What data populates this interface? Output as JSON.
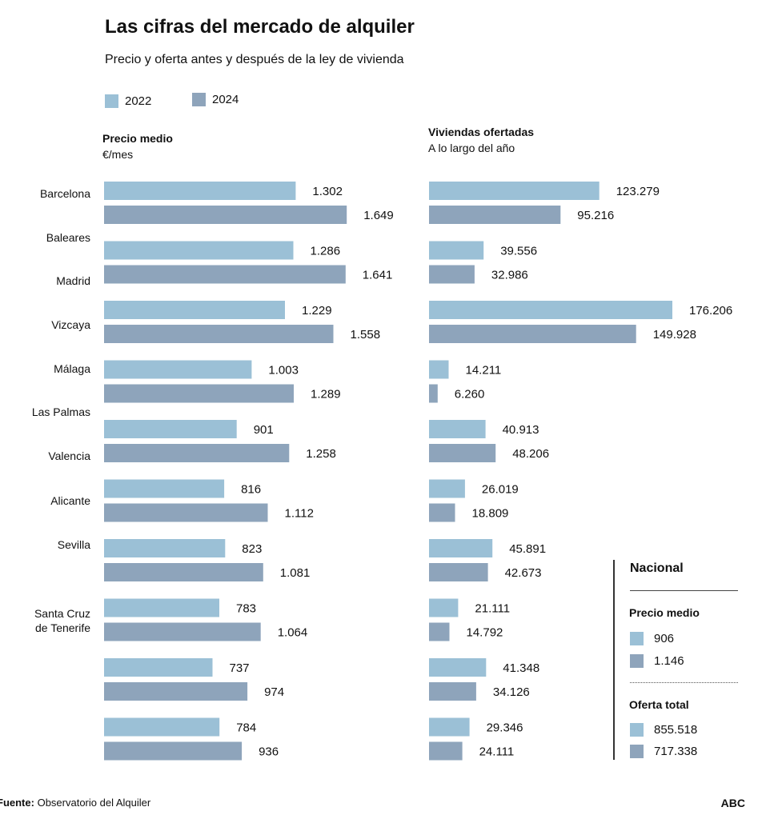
{
  "title": "Las cifras del mercado de alquiler",
  "subtitle": "Precio y oferta antes y después de la ley de vivienda",
  "colors": {
    "y2022": "#9bc0d6",
    "y2024": "#8ea4bb",
    "text": "#111111"
  },
  "legend": {
    "a": "2022",
    "b": "2024"
  },
  "left_panel": {
    "title": "Precio medio",
    "subtitle": "€/mes"
  },
  "right_panel": {
    "title": "Viviendas ofertadas",
    "subtitle": "A lo largo del año"
  },
  "region_labels": [
    "Barcelona",
    "Baleares",
    "Madrid",
    "Vizcaya",
    "Málaga",
    "Las Palmas",
    "Valencia",
    "Alicante",
    "Sevilla",
    "Santa Cruz",
    "de Tenerife"
  ],
  "chart_data": [
    {
      "type": "bar",
      "orientation": "horizontal",
      "title": "Precio medio",
      "unit": "€/mes",
      "series": [
        {
          "name": "2022",
          "values": [
            1302,
            1286,
            1229,
            1003,
            901,
            816,
            823,
            783,
            737,
            784
          ],
          "labels": [
            "1.302",
            "1.286",
            "1.229",
            "1.003",
            "901",
            "816",
            "823",
            "783",
            "737",
            "784"
          ]
        },
        {
          "name": "2024",
          "values": [
            1649,
            1641,
            1558,
            1289,
            1258,
            1112,
            1081,
            1064,
            974,
            936
          ],
          "labels": [
            "1.649",
            "1.641",
            "1.558",
            "1.289",
            "1.258",
            "1.112",
            "1.081",
            "1.064",
            "974",
            "936"
          ]
        }
      ],
      "xlim": [
        0,
        1800
      ]
    },
    {
      "type": "bar",
      "orientation": "horizontal",
      "title": "Viviendas ofertadas",
      "subtitle": "A lo largo del año",
      "series": [
        {
          "name": "2022",
          "values": [
            123279,
            39556,
            176206,
            14211,
            40913,
            26019,
            45891,
            21111,
            41348,
            29346
          ],
          "labels": [
            "123.279",
            "39.556",
            "176.206",
            "14.211",
            "40.913",
            "26.019",
            "45.891",
            "21.111",
            "41.348",
            "29.346"
          ]
        },
        {
          "name": "2024",
          "values": [
            95216,
            32986,
            149928,
            6260,
            48206,
            18809,
            42673,
            14792,
            34126,
            24111
          ],
          "labels": [
            "95.216",
            "32.986",
            "149.928",
            "6.260",
            "48.206",
            "18.809",
            "42.673",
            "14.792",
            "34.126",
            "24.111"
          ]
        }
      ],
      "xlim": [
        0,
        176206
      ]
    }
  ],
  "nacional": {
    "title": "Nacional",
    "precio_title": "Precio medio",
    "precio_2022": "906",
    "precio_2024": "1.146",
    "oferta_title": "Oferta total",
    "oferta_2022": "855.518",
    "oferta_2024": "717.338"
  },
  "source": {
    "label": "Fuente:",
    "text": "Observatorio del Alquiler"
  },
  "brand": "ABC"
}
